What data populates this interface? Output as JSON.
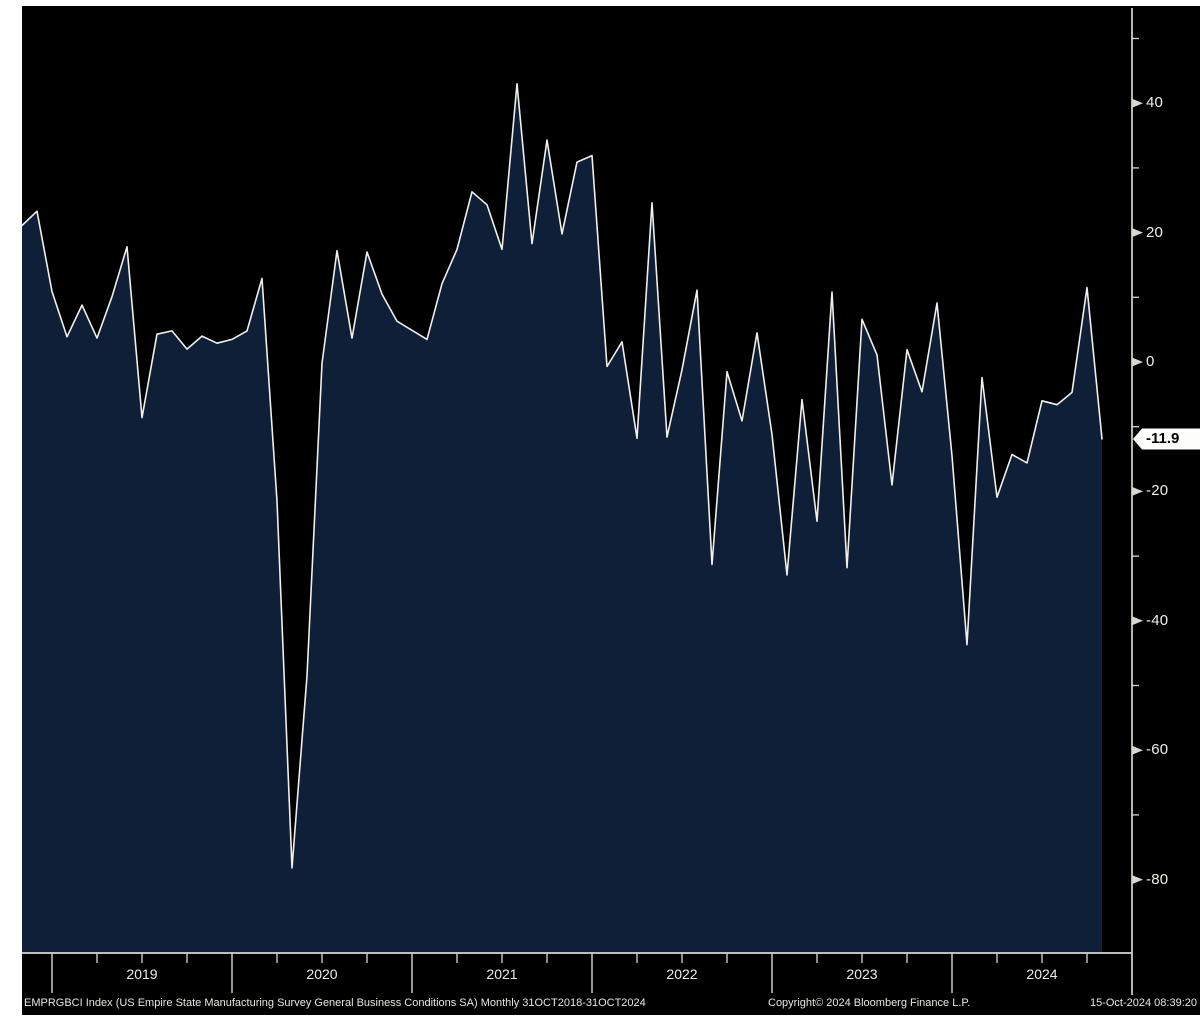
{
  "chart_data": {
    "type": "area",
    "series_name": "EMPRGBCI Index",
    "description": "US Empire State Manufacturing Survey General Business Conditions SA",
    "frequency": "Monthly",
    "start_month": "2018-10",
    "end_month": "2024-10",
    "values": [
      21.1,
      23.3,
      10.9,
      3.9,
      8.8,
      3.7,
      10.1,
      17.8,
      -8.6,
      4.3,
      4.8,
      2.0,
      4.0,
      2.9,
      3.5,
      4.8,
      12.9,
      -21.5,
      -78.2,
      -48.5,
      -0.2,
      17.2,
      3.7,
      17.0,
      10.5,
      6.3,
      4.9,
      3.5,
      12.1,
      17.4,
      26.3,
      24.3,
      17.4,
      43.0,
      18.3,
      34.3,
      19.8,
      30.9,
      31.9,
      -0.7,
      3.1,
      -11.8,
      24.6,
      -11.6,
      -1.2,
      11.1,
      -31.3,
      -1.5,
      -9.1,
      4.5,
      -11.2,
      -32.9,
      -5.8,
      -24.6,
      10.8,
      -31.8,
      6.6,
      1.1,
      -19.0,
      1.9,
      -4.6,
      9.1,
      -14.5,
      -43.7,
      -2.4,
      -20.9,
      -14.3,
      -15.6,
      -6.0,
      -6.6,
      -4.7,
      11.5,
      -11.9
    ],
    "last_value": -11.9,
    "last_value_label": "-11.9",
    "x_year_labels": [
      "2019",
      "2020",
      "2021",
      "2022",
      "2023",
      "2024"
    ],
    "y_ticks_major": [
      40,
      20,
      0,
      -20,
      -40,
      -60,
      -80
    ],
    "y_ticks_minor": [
      50,
      30,
      10,
      -10,
      -30,
      -50,
      -70
    ],
    "ylim": [
      -91,
      54
    ],
    "grid": "off",
    "legend": "none",
    "axis_position": "right"
  },
  "footer": {
    "left": "EMPRGBCI Index (US Empire State Manufacturing Survey General Business Conditions SA)  Monthly 31OCT2018-31OCT2024",
    "center": "Copyright© 2024 Bloomberg Finance L.P.",
    "right": "15-Oct-2024 08:39:20"
  },
  "colors": {
    "page": "#ffffff",
    "background": "#000000",
    "area_fill": "#101f38",
    "line": "#f0efe8",
    "axis": "#d9d6cd",
    "tick_text": "#f1efe6",
    "year_text": "#ecece2",
    "footer_text": "#e8e6dc",
    "badge_bg": "#fdfdfb",
    "badge_text": "#000000"
  }
}
